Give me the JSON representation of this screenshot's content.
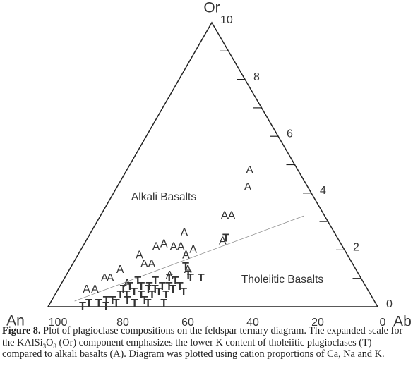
{
  "chart_data": {
    "type": "ternary",
    "vertex_labels": {
      "top": "Or",
      "left": "An",
      "right": "Ab"
    },
    "region_labels": [
      "Alkali Basalts",
      "Tholeiitic Basalts"
    ],
    "an_ticks": [
      100,
      80,
      60,
      40,
      20,
      0
    ],
    "or_lim": [
      0,
      10
    ],
    "or_ticks": [
      0,
      2,
      4,
      6,
      8,
      10
    ],
    "or_minor_ticks": [
      1,
      3,
      5,
      7,
      9
    ],
    "boundary": {
      "An": [
        92.6,
        8.9
      ],
      "Or": [
        0.2,
        3.2
      ]
    },
    "series": [
      {
        "marker": "A",
        "An": [
          26.9,
          30.2,
          43.2,
          40.2,
          45.0,
          60.0,
          67.4,
          63.6,
          60.9,
          70.2,
          56.2,
          73.3,
          75.7,
          70.7,
          81.2,
          85.6,
          83.7,
          90.2,
          87.5,
          58.8,
          57.9,
          77.6,
          64.0
        ],
        "Or": [
          4.8,
          4.2,
          3.2,
          3.2,
          2.3,
          2.6,
          2.2,
          2.1,
          2.1,
          2.1,
          2.0,
          1.5,
          1.8,
          1.5,
          1.3,
          1.0,
          1.0,
          0.6,
          0.6,
          1.8,
          1.3,
          0.8,
          1.1
        ]
      },
      {
        "marker": "T",
        "An": [
          43.6,
          53.4,
          58.7,
          57.7,
          61.9,
          64.0,
          66.0,
          68.2,
          70.4,
          72.8,
          74.7,
          76.9,
          78.9,
          80.9,
          82.8,
          84.9,
          87.9,
          89.5,
          64.9,
          73.9,
          82.4,
          71.0,
          68.9,
          66.9,
          62.5,
          60.3,
          56.9,
          59.0,
          64.5,
          72.3,
          76.3,
          79.5,
          69.8,
          68.5,
          70.2,
          63.8,
          74.3,
          78.4,
          76.5
        ],
        "Or": [
          2.4,
          1.0,
          1.4,
          1.1,
          0.9,
          1.0,
          0.7,
          0.6,
          0.6,
          0.7,
          0.5,
          0.4,
          0.4,
          0.2,
          0.2,
          0.1,
          0.1,
          0.0,
          0.1,
          0.1,
          0.0,
          0.2,
          0.4,
          0.5,
          0.6,
          0.7,
          1.0,
          0.5,
          0.4,
          0.4,
          0.2,
          0.1,
          0.1,
          0.9,
          0.7,
          0.7,
          0.9,
          0.6,
          0.7
        ]
      }
    ],
    "caption": {
      "label": "Figure 8.",
      "parts": [
        " Plot of plagioclase compositions on the feldspar ternary diagram. The expanded scale for the KAlSi",
        "3",
        "O",
        "8",
        " (Or) component emphasizes the lower K content of tholeiitic plagioclases (T) compared to alkali basalts (A). Diagram was plotted using cation proportions of Ca, Na and K."
      ]
    }
  }
}
